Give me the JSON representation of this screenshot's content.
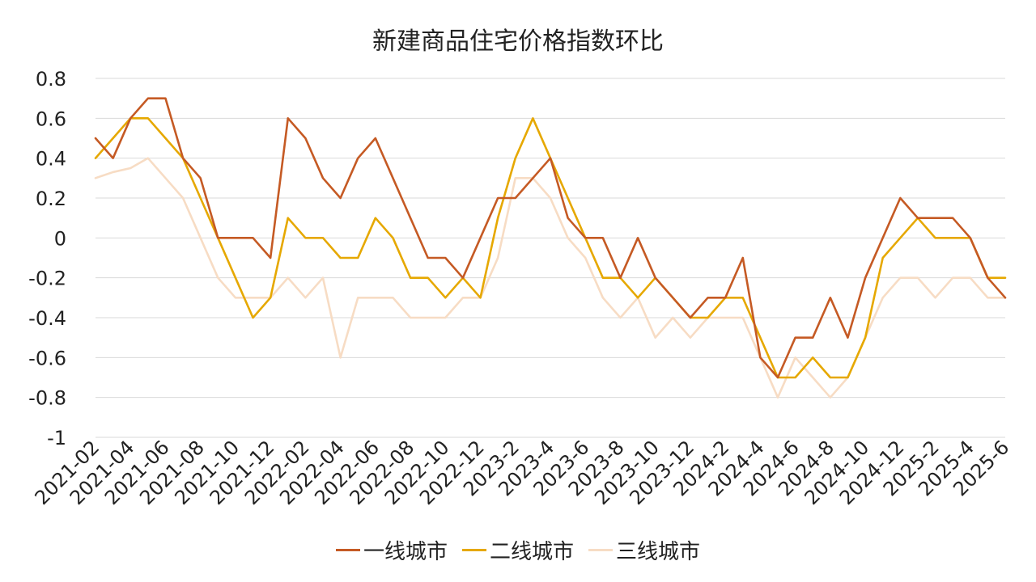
{
  "chart_data": {
    "type": "line",
    "title": "新建商品住宅价格指数环比",
    "xlabel": "",
    "ylabel": "",
    "ylim": [
      -1,
      0.8
    ],
    "y_ticks": [
      0.8,
      0.6,
      0.4,
      0.2,
      0,
      -0.2,
      -0.4,
      -0.6,
      -0.8,
      -1
    ],
    "y_tick_labels": [
      "0.8",
      "0.6",
      "0.4",
      "0.2",
      "0",
      "-0.2",
      "-0.4",
      "-0.6",
      "-0.8",
      "-1"
    ],
    "grid": true,
    "legend_position": "bottom",
    "x": [
      "2021-02",
      "2021-03",
      "2021-04",
      "2021-05",
      "2021-06",
      "2021-07",
      "2021-08",
      "2021-09",
      "2021-10",
      "2021-11",
      "2021-12",
      "2022-01",
      "2022-02",
      "2022-03",
      "2022-04",
      "2022-05",
      "2022-06",
      "2022-07",
      "2022-08",
      "2022-09",
      "2022-10",
      "2022-11",
      "2022-12",
      "2023-1",
      "2023-2",
      "2023-3",
      "2023-4",
      "2023-5",
      "2023-6",
      "2023-7",
      "2023-8",
      "2023-9",
      "2023-10",
      "2023-11",
      "2023-12",
      "2024-1",
      "2024-2",
      "2024-3",
      "2024-4",
      "2024-5",
      "2024-6",
      "2024-7",
      "2024-8",
      "2024-9",
      "2024-10",
      "2024-11",
      "2024-12",
      "2025-1",
      "2025-2",
      "2025-3",
      "2025-4",
      "2025-5",
      "2025-6"
    ],
    "x_tick_labels": [
      "2021-02",
      "2021-04",
      "2021-06",
      "2021-08",
      "2021-10",
      "2021-12",
      "2022-02",
      "2022-04",
      "2022-06",
      "2022-08",
      "2022-10",
      "2022-12",
      "2023-2",
      "2023-4",
      "2023-6",
      "2023-8",
      "2023-10",
      "2023-12",
      "2024-2",
      "2024-4",
      "2024-6",
      "2024-8",
      "2024-10",
      "2024-12",
      "2025-2",
      "2025-4",
      "2025-6"
    ],
    "x_tick_every": 2,
    "series": [
      {
        "name": "一线城市",
        "color": "#c55a24",
        "values": [
          0.5,
          0.4,
          0.6,
          0.7,
          0.7,
          0.4,
          0.3,
          0.0,
          0.0,
          0.0,
          -0.1,
          0.6,
          0.5,
          0.3,
          0.2,
          0.4,
          0.5,
          0.3,
          0.1,
          -0.1,
          -0.1,
          -0.2,
          0.0,
          0.2,
          0.2,
          0.3,
          0.4,
          0.1,
          0.0,
          0.0,
          -0.2,
          0.0,
          -0.2,
          -0.3,
          -0.4,
          -0.3,
          -0.3,
          -0.1,
          -0.6,
          -0.7,
          -0.5,
          -0.5,
          -0.3,
          -0.5,
          -0.2,
          0.0,
          0.2,
          0.1,
          0.1,
          0.1,
          0.0,
          -0.2,
          -0.3
        ]
      },
      {
        "name": "二线城市",
        "color": "#e6a800",
        "values": [
          0.4,
          0.5,
          0.6,
          0.6,
          0.5,
          0.4,
          0.2,
          0.0,
          -0.2,
          -0.4,
          -0.3,
          0.1,
          0.0,
          0.0,
          -0.1,
          -0.1,
          0.1,
          0.0,
          -0.2,
          -0.2,
          -0.3,
          -0.2,
          -0.3,
          0.1,
          0.4,
          0.6,
          0.4,
          0.2,
          0.0,
          -0.2,
          -0.2,
          -0.3,
          -0.2,
          -0.3,
          -0.4,
          -0.4,
          -0.3,
          -0.3,
          -0.5,
          -0.7,
          -0.7,
          -0.6,
          -0.7,
          -0.7,
          -0.5,
          -0.1,
          0.0,
          0.1,
          0.0,
          0.0,
          0.0,
          -0.2,
          -0.2
        ]
      },
      {
        "name": "三线城市",
        "color": "#f7dcc4",
        "values": [
          0.3,
          0.33,
          0.35,
          0.4,
          0.3,
          0.2,
          0.0,
          -0.2,
          -0.3,
          -0.3,
          -0.3,
          -0.2,
          -0.3,
          -0.2,
          -0.6,
          -0.3,
          -0.3,
          -0.3,
          -0.4,
          -0.4,
          -0.4,
          -0.3,
          -0.3,
          -0.1,
          0.3,
          0.3,
          0.2,
          0.0,
          -0.1,
          -0.3,
          -0.4,
          -0.3,
          -0.5,
          -0.4,
          -0.5,
          -0.4,
          -0.4,
          -0.4,
          -0.6,
          -0.8,
          -0.6,
          -0.7,
          -0.8,
          -0.7,
          -0.5,
          -0.3,
          -0.2,
          -0.2,
          -0.3,
          -0.2,
          -0.2,
          -0.3,
          -0.3
        ]
      }
    ]
  }
}
